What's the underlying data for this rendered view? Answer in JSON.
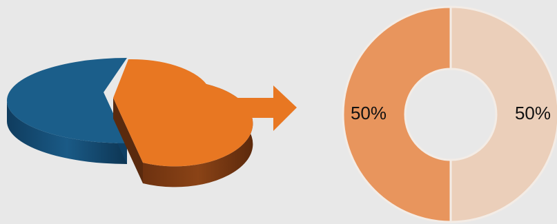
{
  "colors": {
    "background": "#e8e8e8",
    "pie_blue": "#1b5e8a",
    "pie_orange": "#e87722",
    "donut_dark": "#e8955d",
    "donut_light": "#ebcfba",
    "arrow": "#e87722"
  },
  "icons": {
    "arrow": "right-arrow-icon"
  },
  "chart_data": [
    {
      "type": "pie",
      "style": "3d-exploded",
      "slices": [
        {
          "value": 62,
          "color": "#1b5e8a"
        },
        {
          "value": 38,
          "color": "#e87722"
        }
      ]
    },
    {
      "type": "pie",
      "style": "donut",
      "slices": [
        {
          "value": 50,
          "label": "50%",
          "color": "#e8955d"
        },
        {
          "value": 50,
          "label": "50%",
          "color": "#ebcfba"
        }
      ]
    }
  ]
}
